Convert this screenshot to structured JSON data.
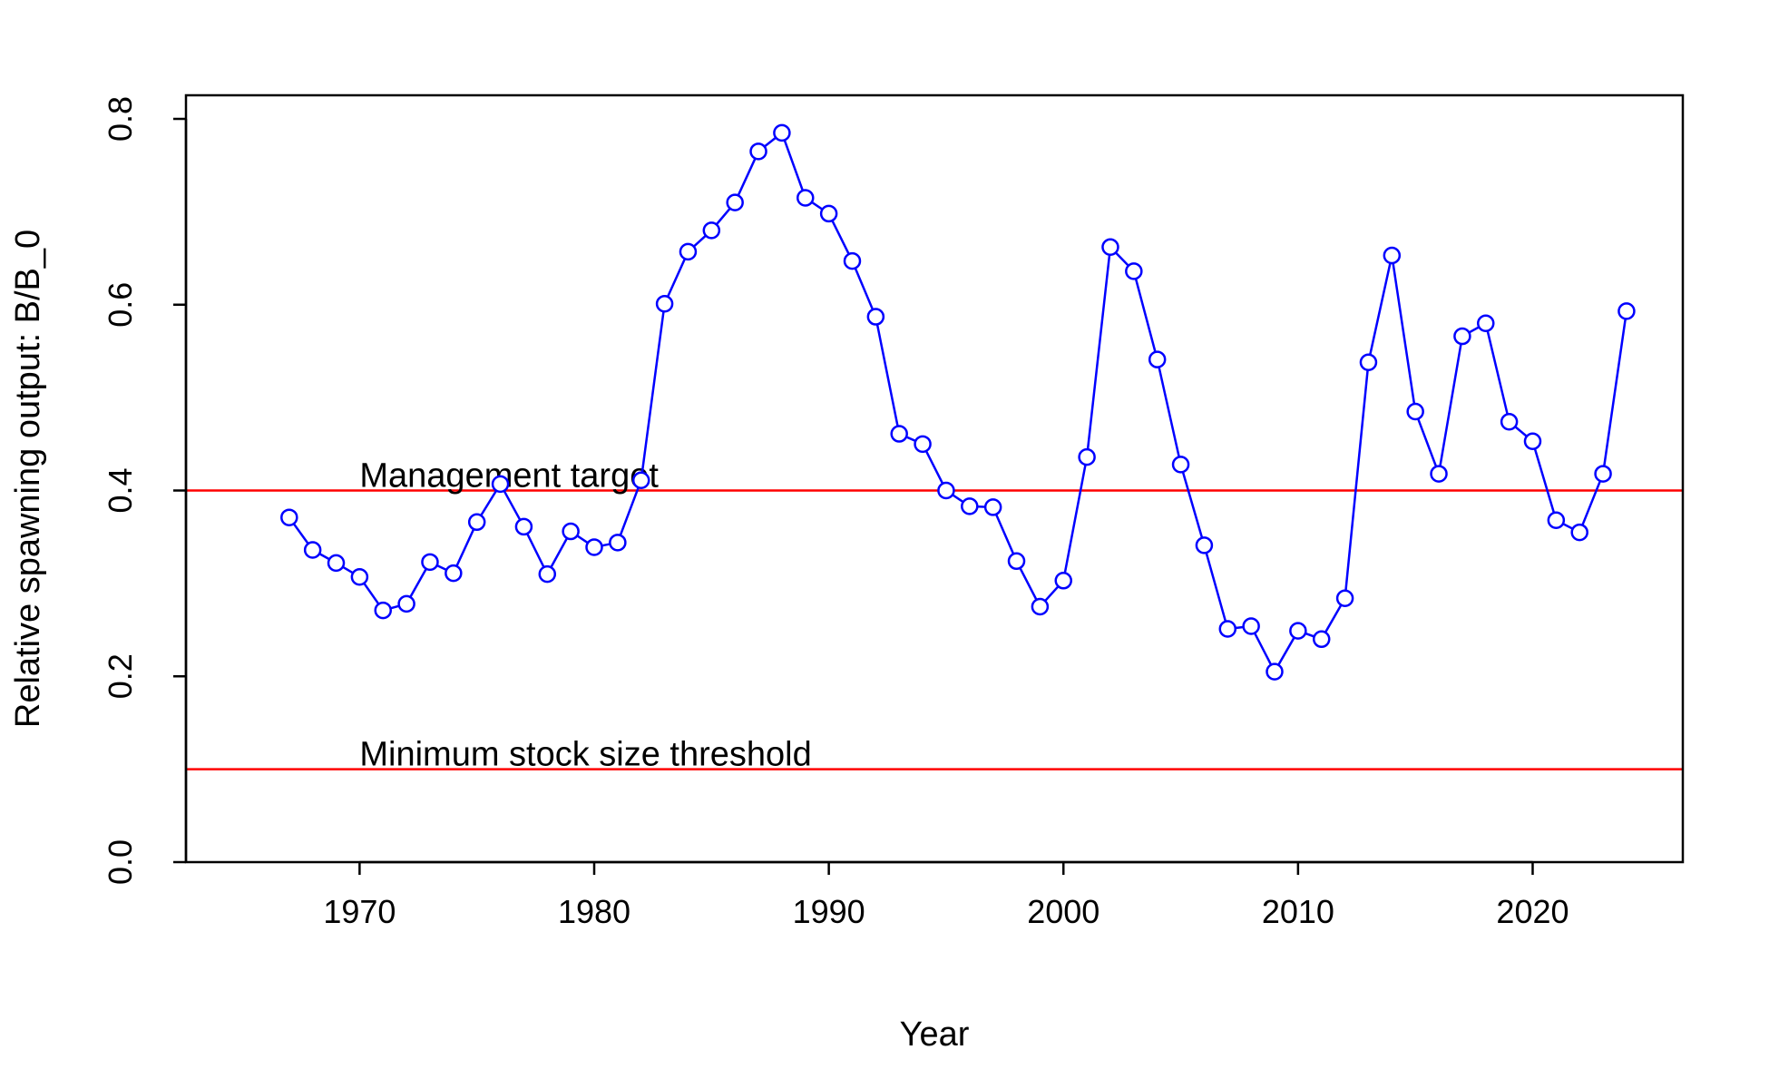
{
  "chart_data": {
    "type": "line",
    "title": "",
    "xlabel": "Year",
    "ylabel": "Relative spawning output: B/B_0",
    "xlim": [
      1962.6,
      2026.4
    ],
    "ylim": [
      0,
      0.8
    ],
    "xticks": [
      1970,
      1980,
      1990,
      2000,
      2010,
      2020
    ],
    "yticks": [
      0.0,
      0.2,
      0.4,
      0.6,
      0.8
    ],
    "xtick_labels": [
      "1970",
      "1980",
      "1990",
      "2000",
      "2010",
      "2020"
    ],
    "ytick_labels": [
      "0.0",
      "0.2",
      "0.4",
      "0.6",
      "0.8"
    ],
    "grid": false,
    "series": [
      {
        "color": "#0000ff",
        "marker": "open-circle",
        "x": [
          1967,
          1968,
          1969,
          1970,
          1971,
          1972,
          1973,
          1974,
          1975,
          1976,
          1977,
          1978,
          1979,
          1980,
          1981,
          1982,
          1983,
          1984,
          1985,
          1986,
          1987,
          1988,
          1989,
          1990,
          1991,
          1992,
          1993,
          1994,
          1995,
          1996,
          1997,
          1998,
          1999,
          2000,
          2001,
          2002,
          2003,
          2004,
          2005,
          2006,
          2007,
          2008,
          2009,
          2010,
          2011,
          2012,
          2013,
          2014,
          2015,
          2016,
          2017,
          2018,
          2019,
          2020,
          2021,
          2022,
          2023,
          2024
        ],
        "y": [
          0.371,
          0.336,
          0.322,
          0.307,
          0.271,
          0.278,
          0.323,
          0.311,
          0.366,
          0.407,
          0.361,
          0.31,
          0.356,
          0.339,
          0.344,
          0.411,
          0.601,
          0.657,
          0.68,
          0.71,
          0.765,
          0.785,
          0.715,
          0.698,
          0.647,
          0.587,
          0.461,
          0.45,
          0.4,
          0.383,
          0.382,
          0.324,
          0.275,
          0.303,
          0.436,
          0.662,
          0.636,
          0.541,
          0.428,
          0.341,
          0.251,
          0.254,
          0.205,
          0.249,
          0.24,
          0.284,
          0.538,
          0.653,
          0.485,
          0.418,
          0.566,
          0.58,
          0.474,
          0.453,
          0.368,
          0.355,
          0.418,
          0.593
        ]
      }
    ],
    "reference_lines": [
      {
        "label": "Management target",
        "y": 0.4,
        "color": "#ff0000",
        "label_x": 1970
      },
      {
        "label": "Minimum stock size threshold",
        "y": 0.1,
        "color": "#ff0000",
        "label_x": 1970
      }
    ]
  }
}
